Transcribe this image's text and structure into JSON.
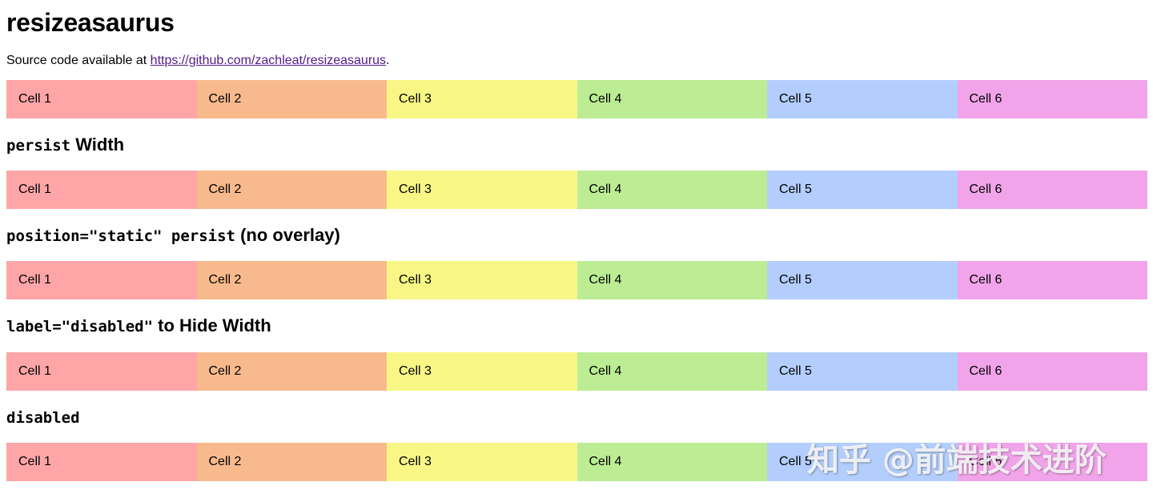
{
  "page": {
    "title": "resizeasaurus",
    "source_prefix": "Source code available at ",
    "source_link": "https://github.com/zachleat/resizeasaurus",
    "source_suffix": "."
  },
  "cells": [
    "Cell 1",
    "Cell 2",
    "Cell 3",
    "Cell 4",
    "Cell 5",
    "Cell 6"
  ],
  "cell_colors": [
    "#fea5a8",
    "#f8ba8d",
    "#f8f786",
    "#bced94",
    "#b3cefd",
    "#f1a4e9"
  ],
  "sections": [
    {
      "code": "persist",
      "text": " Width"
    },
    {
      "code": "position=\"static\" persist",
      "text": " (no overlay)"
    },
    {
      "code": "label=\"disabled\"",
      "text": " to Hide Width"
    },
    {
      "code": "disabled",
      "text": ""
    }
  ],
  "watermark": "知乎 @前端技术进阶"
}
